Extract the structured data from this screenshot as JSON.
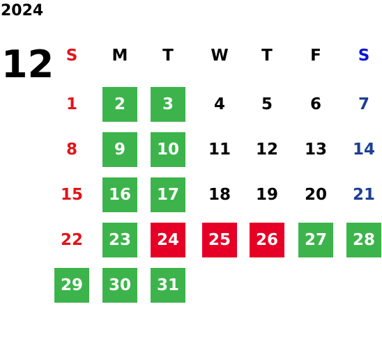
{
  "year": "2024",
  "month": "12",
  "weekdays": [
    {
      "text": "S",
      "color": "#e3141b"
    },
    {
      "text": "M",
      "color": "#000000"
    },
    {
      "text": "T",
      "color": "#000000"
    },
    {
      "text": "W",
      "color": "#000000"
    },
    {
      "text": "T",
      "color": "#000000"
    },
    {
      "text": "F",
      "color": "#000000"
    },
    {
      "text": "S",
      "color": "#0a14d6"
    }
  ],
  "weeks": [
    [
      {
        "day": "1",
        "bg": null,
        "color": "#e3141b"
      },
      {
        "day": "2",
        "bg": "#3cb44b",
        "color": "#ffffff"
      },
      {
        "day": "3",
        "bg": "#3cb44b",
        "color": "#ffffff"
      },
      {
        "day": "4",
        "bg": null,
        "color": "#000000"
      },
      {
        "day": "5",
        "bg": null,
        "color": "#000000"
      },
      {
        "day": "6",
        "bg": null,
        "color": "#000000"
      },
      {
        "day": "7",
        "bg": null,
        "color": "#1c3f94"
      }
    ],
    [
      {
        "day": "8",
        "bg": null,
        "color": "#e3141b"
      },
      {
        "day": "9",
        "bg": "#3cb44b",
        "color": "#ffffff"
      },
      {
        "day": "10",
        "bg": "#3cb44b",
        "color": "#ffffff"
      },
      {
        "day": "11",
        "bg": null,
        "color": "#000000"
      },
      {
        "day": "12",
        "bg": null,
        "color": "#000000"
      },
      {
        "day": "13",
        "bg": null,
        "color": "#000000"
      },
      {
        "day": "14",
        "bg": null,
        "color": "#1c3f94"
      }
    ],
    [
      {
        "day": "15",
        "bg": null,
        "color": "#e3141b"
      },
      {
        "day": "16",
        "bg": "#3cb44b",
        "color": "#ffffff"
      },
      {
        "day": "17",
        "bg": "#3cb44b",
        "color": "#ffffff"
      },
      {
        "day": "18",
        "bg": null,
        "color": "#000000"
      },
      {
        "day": "19",
        "bg": null,
        "color": "#000000"
      },
      {
        "day": "20",
        "bg": null,
        "color": "#000000"
      },
      {
        "day": "21",
        "bg": null,
        "color": "#1c3f94"
      }
    ],
    [
      {
        "day": "22",
        "bg": null,
        "color": "#e3141b"
      },
      {
        "day": "23",
        "bg": "#3cb44b",
        "color": "#ffffff"
      },
      {
        "day": "24",
        "bg": "#e60026",
        "color": "#ffffff"
      },
      {
        "day": "25",
        "bg": "#e60026",
        "color": "#ffffff"
      },
      {
        "day": "26",
        "bg": "#e60026",
        "color": "#ffffff"
      },
      {
        "day": "27",
        "bg": "#3cb44b",
        "color": "#ffffff"
      },
      {
        "day": "28",
        "bg": "#3cb44b",
        "color": "#ffffff"
      }
    ],
    [
      {
        "day": "29",
        "bg": "#3cb44b",
        "color": "#ffffff"
      },
      {
        "day": "30",
        "bg": "#3cb44b",
        "color": "#ffffff"
      },
      {
        "day": "31",
        "bg": "#3cb44b",
        "color": "#ffffff"
      },
      null,
      null,
      null,
      null
    ]
  ]
}
